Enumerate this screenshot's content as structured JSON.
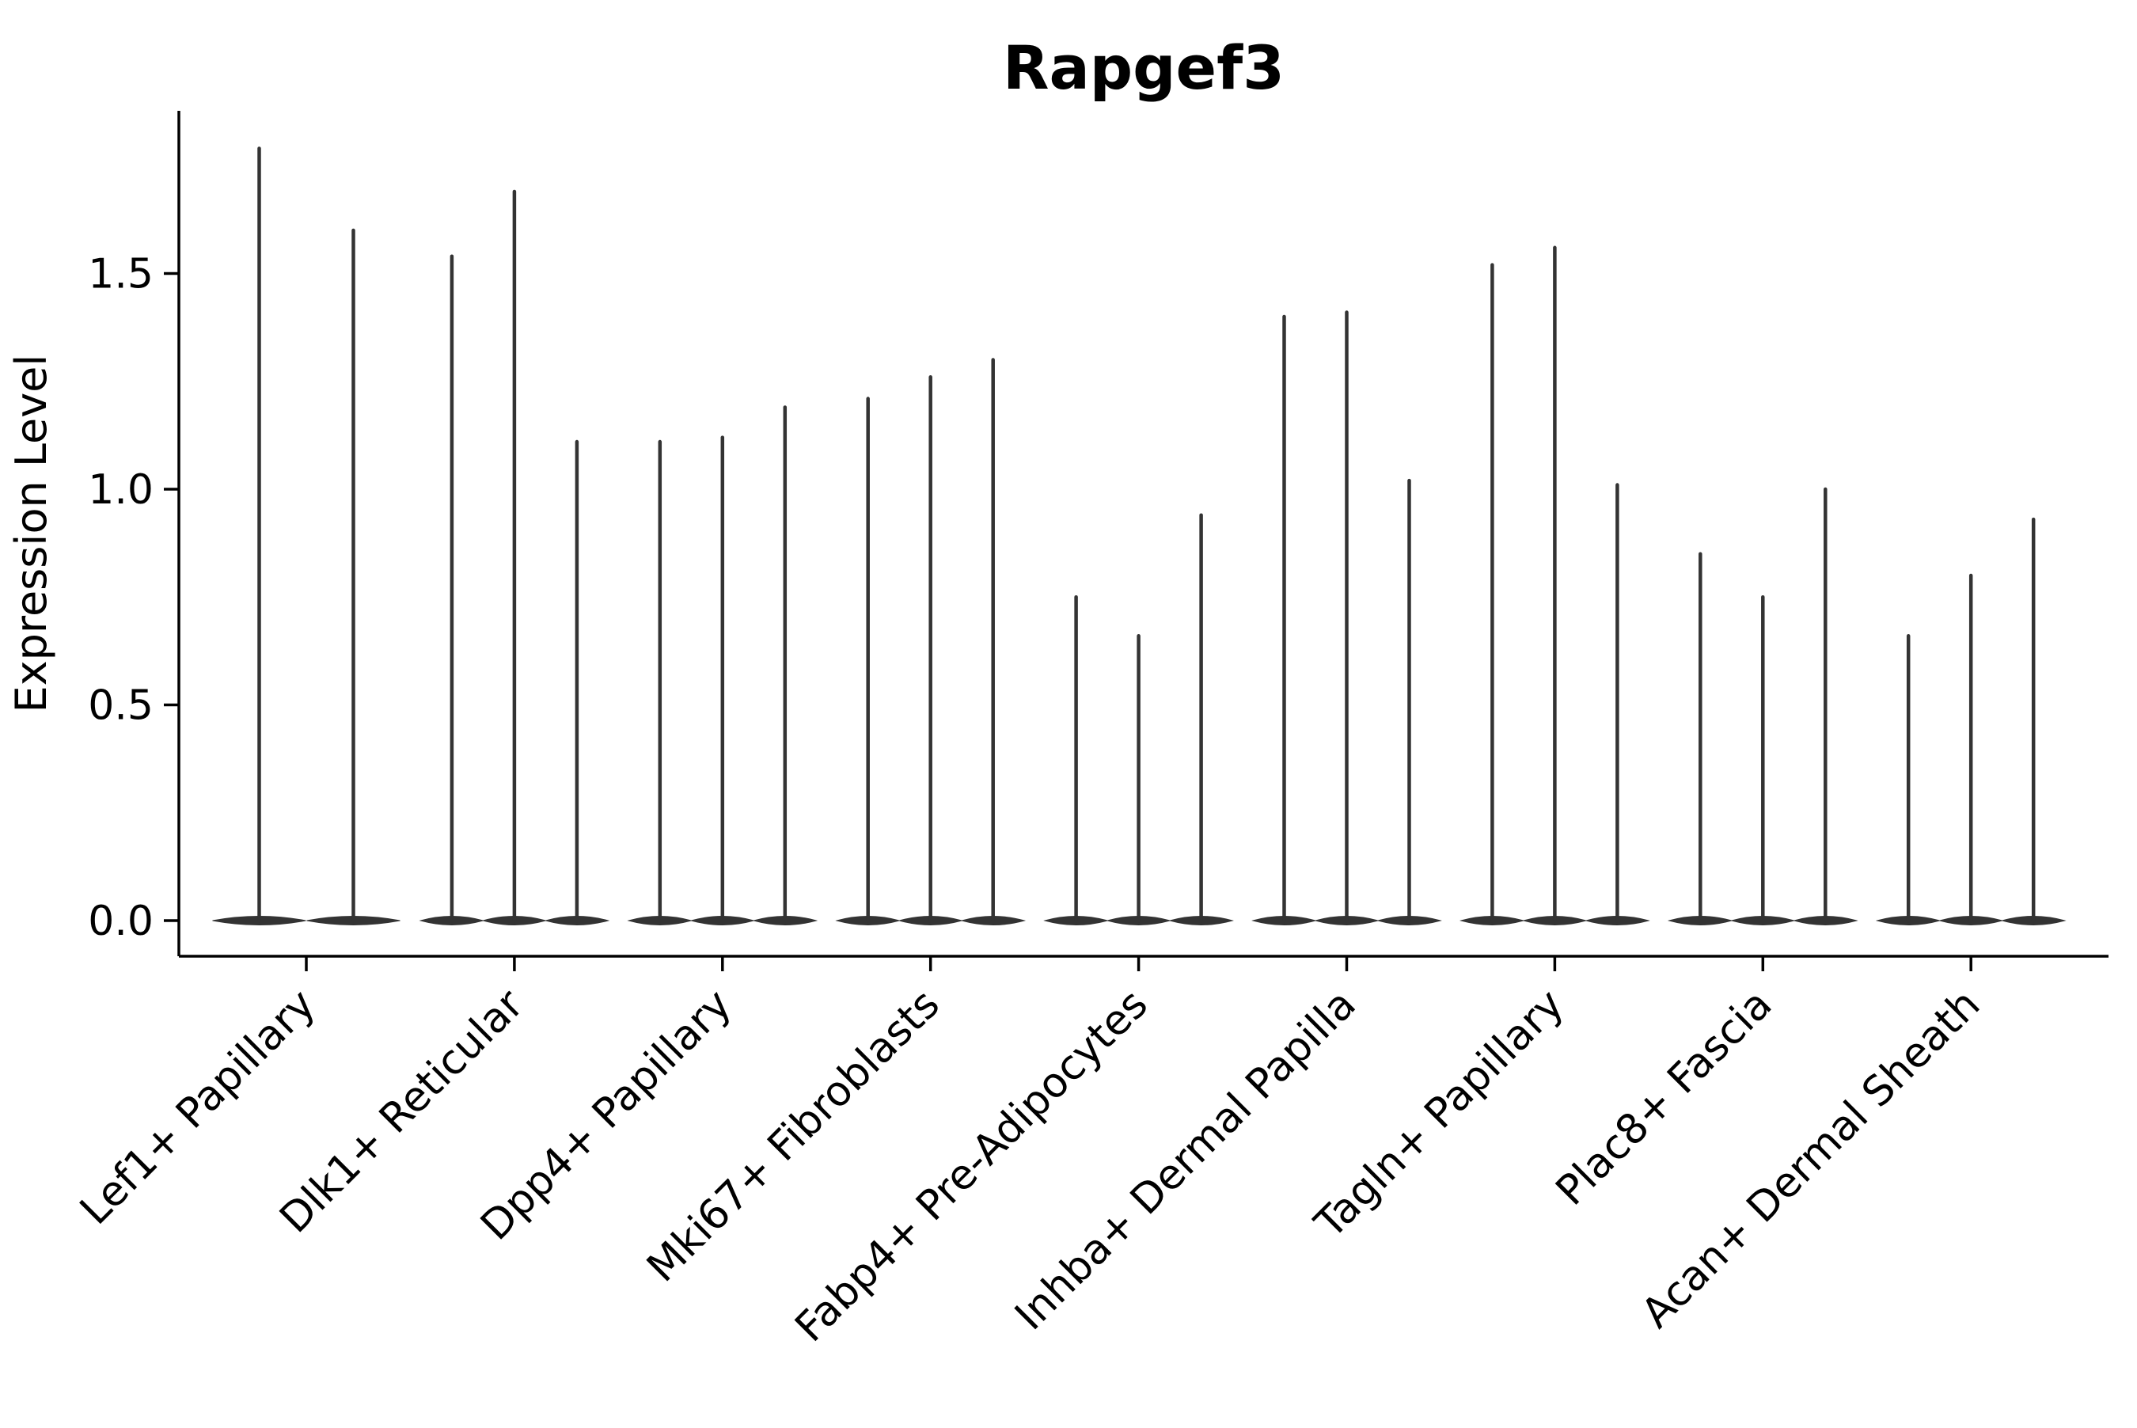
{
  "figure": {
    "title": "Rapgef3",
    "ylabel": "Expression Level",
    "xlabel": ""
  },
  "chart_data": {
    "type": "violin",
    "title": "Rapgef3",
    "ylabel": "Expression Level",
    "xlabel": "",
    "categories": [
      "Lef1+ Papillary",
      "Dlk1+ Reticular",
      "Dpp4+ Papillary",
      "Mki67+ Fibroblasts",
      "Fabp4+ Pre-Adipocytes",
      "Inhba+ Dermal Papilla",
      "Tagln+ Papillary",
      "Plac8+ Fascia",
      "Acan+ Dermal Sheath"
    ],
    "series": [
      {
        "category": "Lef1+ Papillary",
        "spike_max_values": [
          1.79,
          1.6
        ]
      },
      {
        "category": "Dlk1+ Reticular",
        "spike_max_values": [
          1.54,
          1.69,
          1.11
        ]
      },
      {
        "category": "Dpp4+ Papillary",
        "spike_max_values": [
          1.11,
          1.12,
          1.19
        ]
      },
      {
        "category": "Mki67+ Fibroblasts",
        "spike_max_values": [
          1.21,
          1.26,
          1.3
        ]
      },
      {
        "category": "Fabp4+ Pre-Adipocytes",
        "spike_max_values": [
          0.75,
          0.66,
          0.94
        ]
      },
      {
        "category": "Inhba+ Dermal Papilla",
        "spike_max_values": [
          1.4,
          1.41,
          1.02
        ]
      },
      {
        "category": "Tagln+ Papillary",
        "spike_max_values": [
          1.52,
          1.56,
          1.01
        ]
      },
      {
        "category": "Plac8+ Fascia",
        "spike_max_values": [
          0.85,
          0.75,
          1.0
        ]
      },
      {
        "category": "Acan+ Dermal Sheath",
        "spike_max_values": [
          0.66,
          0.8,
          0.93
        ]
      }
    ],
    "baseline_value": 0.0,
    "yticks": [
      0.0,
      0.5,
      1.0,
      1.5
    ],
    "ytick_labels": [
      "0.0",
      "0.5",
      "1.0",
      "1.5"
    ],
    "ylim": [
      -0.08,
      1.88
    ],
    "grid": false,
    "legend": "none",
    "x_tick_rotation_deg": 45,
    "violin_color": "#333333",
    "axis_color": "#000000",
    "background": "#ffffff"
  }
}
